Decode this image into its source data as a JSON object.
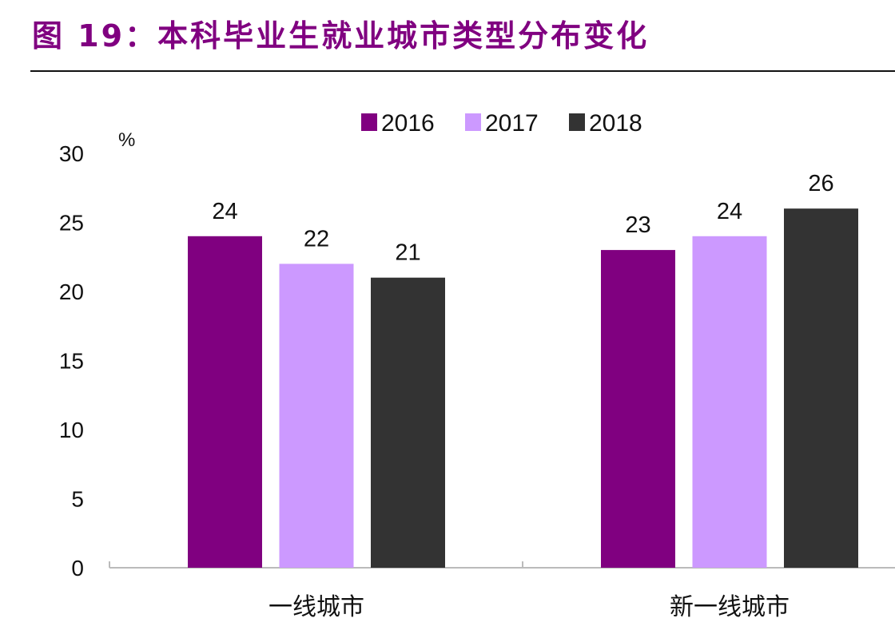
{
  "title": "图 19：本科毕业生就业城市类型分布变化",
  "chart_data": {
    "type": "bar",
    "title": "图 19：本科毕业生就业城市类型分布变化",
    "ylabel": "%",
    "xlabel": "",
    "categories": [
      "一线城市",
      "新一线城市"
    ],
    "series": [
      {
        "name": "2016",
        "color": "#800080",
        "values": [
          24,
          23
        ]
      },
      {
        "name": "2017",
        "color": "#CC99FF",
        "values": [
          22,
          24
        ]
      },
      {
        "name": "2018",
        "color": "#333333",
        "values": [
          21,
          26
        ]
      }
    ],
    "ylim": [
      0,
      30
    ],
    "yticks": [
      0,
      5,
      10,
      15,
      20,
      25,
      30
    ],
    "grid": false,
    "legend": "top-center",
    "data_labels": true
  }
}
